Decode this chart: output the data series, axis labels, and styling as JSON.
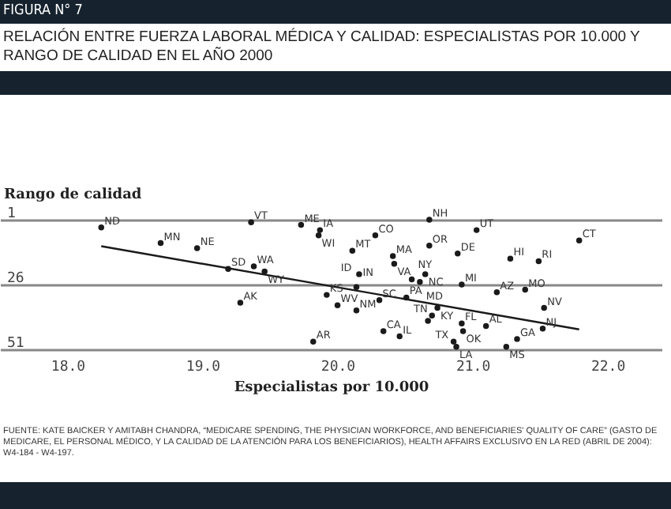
{
  "chart_data": {
    "type": "scatter",
    "title": "RELACIÓN ENTRE FUERZA LABORAL MÉDICA Y CALIDAD: ESPECIALISTAS POR 10.000 Y RANGO DE CALIDAD EN EL AÑO 2000",
    "xlabel": "Especialistas por 10.000",
    "ylabel": "Rango de calidad",
    "xlim": [
      17.5,
      22.4
    ],
    "ylim": [
      51,
      1
    ],
    "xticks": [
      {
        "value": 18,
        "label": "18.0"
      },
      {
        "value": 19,
        "label": "19.0"
      },
      {
        "value": 20,
        "label": "20.0"
      },
      {
        "value": 21,
        "label": "21.0"
      },
      {
        "value": 22,
        "label": "22.0"
      }
    ],
    "yticks": [
      1,
      26,
      51
    ],
    "grid": "y",
    "series": [
      {
        "color": "#1a1a1a",
        "type": "scatter",
        "marker": "circle",
        "x": [
          18.25,
          18.69,
          18.96,
          19.36,
          19.73,
          19.87,
          19.86,
          19.19,
          19.38,
          19.46,
          19.28,
          19.82,
          19.92,
          20.0,
          20.14,
          20.14,
          20.16,
          20.11,
          20.28,
          20.41,
          20.42,
          20.31,
          20.51,
          20.34,
          20.46,
          20.68,
          20.68,
          20.55,
          20.65,
          20.61,
          20.89,
          21.03,
          20.92,
          20.74,
          20.7,
          20.67,
          20.92,
          20.93,
          21.1,
          20.86,
          20.88,
          21.25,
          21.33,
          21.52,
          21.53,
          21.18,
          21.39,
          21.28,
          21.49,
          21.79
        ],
        "values": [
          4,
          10,
          12,
          2,
          3,
          5,
          7,
          20,
          19,
          21,
          33,
          48,
          30,
          34,
          36,
          27,
          22,
          13,
          7,
          15,
          18,
          32,
          31,
          44,
          46,
          1,
          11,
          24,
          22,
          25,
          14,
          5,
          26,
          35,
          38,
          40,
          41,
          44,
          42,
          48,
          50,
          50,
          47,
          43,
          35,
          29,
          28,
          16,
          17,
          9
        ]
      },
      {
        "color": "#1a1a1a",
        "type": "line",
        "x": [
          18.25,
          21.79
        ],
        "values": [
          11.2,
          43.3
        ]
      }
    ],
    "annotations": [
      "FIGURA N° 7",
      {
        "text": "ND",
        "x": 18.25,
        "y": 4
      },
      {
        "text": "MN",
        "x": 18.69,
        "y": 10
      },
      {
        "text": "NE",
        "x": 18.96,
        "y": 12
      },
      {
        "text": "VT",
        "x": 19.36,
        "y": 2
      },
      {
        "text": "ME",
        "x": 19.73,
        "y": 3
      },
      {
        "text": "IA",
        "x": 19.87,
        "y": 5
      },
      {
        "text": "WI",
        "x": 19.86,
        "y": 7
      },
      {
        "text": "SD",
        "x": 19.19,
        "y": 20
      },
      {
        "text": "WA",
        "x": 19.38,
        "y": 19
      },
      {
        "text": "WY",
        "x": 19.46,
        "y": 21
      },
      {
        "text": "AK",
        "x": 19.28,
        "y": 33
      },
      {
        "text": "AR",
        "x": 19.82,
        "y": 48
      },
      {
        "text": "KS",
        "x": 19.92,
        "y": 30
      },
      {
        "text": "WV",
        "x": 20.0,
        "y": 34
      },
      {
        "text": "NM",
        "x": 20.14,
        "y": 36
      },
      {
        "text": "IN",
        "x": 20.14,
        "y": 27
      },
      {
        "text": "ID",
        "x": 20.16,
        "y": 22
      },
      {
        "text": "MT",
        "x": 20.11,
        "y": 13
      },
      {
        "text": "CO",
        "x": 20.28,
        "y": 7
      },
      {
        "text": "MA",
        "x": 20.41,
        "y": 15
      },
      {
        "text": "VA",
        "x": 20.42,
        "y": 18
      },
      {
        "text": "SC",
        "x": 20.31,
        "y": 32
      },
      {
        "text": "PA",
        "x": 20.51,
        "y": 31
      },
      {
        "text": "CA",
        "x": 20.34,
        "y": 44
      },
      {
        "text": "IL",
        "x": 20.46,
        "y": 46
      },
      {
        "text": "NH",
        "x": 20.68,
        "y": 1
      },
      {
        "text": "OR",
        "x": 20.68,
        "y": 11
      },
      {
        "text": "NY",
        "x": 20.55,
        "y": 24
      },
      {
        "text": "NC",
        "x": 20.65,
        "y": 22
      },
      {
        "text": "MD",
        "x": 20.61,
        "y": 25
      },
      {
        "text": "DE",
        "x": 20.89,
        "y": 14
      },
      {
        "text": "UT",
        "x": 21.03,
        "y": 5
      },
      {
        "text": "MI",
        "x": 20.92,
        "y": 26
      },
      {
        "text": "KY",
        "x": 20.74,
        "y": 35
      },
      {
        "text": "TN",
        "x": 20.7,
        "y": 38
      },
      {
        "text": "FL",
        "x": 20.92,
        "y": 41
      },
      {
        "text": "OK",
        "x": 20.93,
        "y": 44
      },
      {
        "text": "AL",
        "x": 21.1,
        "y": 42
      },
      {
        "text": "TX",
        "x": 20.86,
        "y": 48
      },
      {
        "text": "LA",
        "x": 20.88,
        "y": 50
      },
      {
        "text": "MS",
        "x": 21.25,
        "y": 50
      },
      {
        "text": "GA",
        "x": 21.33,
        "y": 47
      },
      {
        "text": "NJ",
        "x": 21.52,
        "y": 43
      },
      {
        "text": "NV",
        "x": 21.53,
        "y": 35
      },
      {
        "text": "AZ",
        "x": 21.18,
        "y": 29
      },
      {
        "text": "MO",
        "x": 21.39,
        "y": 28
      },
      {
        "text": "HI",
        "x": 21.28,
        "y": 16
      },
      {
        "text": "RI",
        "x": 21.49,
        "y": 17
      },
      {
        "text": "CT",
        "x": 21.79,
        "y": 9
      },
      "FUENTE: KATE BAICKER Y AMITABH CHANDRA, “MEDICARE SPENDING, THE PHYSICIAN WORKFORCE, AND BENEFICIARIES' QUALITY OF CARE” (GASTO DE MEDICARE, EL PERSONAL MÉDICO, Y LA CALIDAD DE LA ATENCIÓN PARA LOS BENEFICIARIOS), HEALTH AFFAIRS EXCLUSIVO EN LA RED (ABRIL DE 2004): W4-184 - W4-197."
    ]
  }
}
